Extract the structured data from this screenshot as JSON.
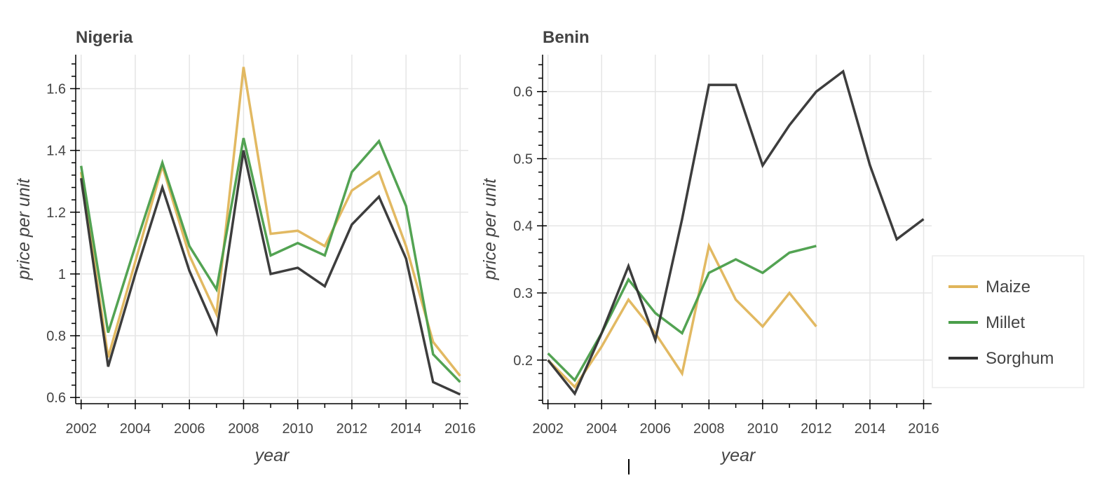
{
  "chart_data": [
    {
      "type": "line",
      "title": "Nigeria",
      "xlabel": "year",
      "ylabel": "price per unit",
      "xlim": [
        2001.8,
        2016.3
      ],
      "ylim": [
        0.58,
        1.71
      ],
      "x_ticks": [
        2002,
        2004,
        2006,
        2008,
        2010,
        2012,
        2014,
        2016
      ],
      "y_ticks": [
        0.6,
        0.8,
        1.0,
        1.2,
        1.4,
        1.6
      ],
      "y_tick_labels": [
        "0.6",
        "0.8",
        "1",
        "1.2",
        "1.4",
        "1.6"
      ],
      "grid": true,
      "series": [
        {
          "name": "Maize",
          "color": "#e0b55a",
          "x": [
            2002,
            2003,
            2004,
            2005,
            2006,
            2007,
            2008,
            2009,
            2010,
            2011,
            2012,
            2013,
            2014,
            2015,
            2016
          ],
          "values": [
            1.33,
            0.73,
            1.04,
            1.35,
            1.06,
            0.87,
            1.67,
            1.13,
            1.14,
            1.09,
            1.27,
            1.33,
            1.09,
            0.78,
            0.67
          ]
        },
        {
          "name": "Millet",
          "color": "#4a9e4a",
          "x": [
            2002,
            2003,
            2004,
            2005,
            2006,
            2007,
            2008,
            2009,
            2010,
            2011,
            2012,
            2013,
            2014,
            2015,
            2016
          ],
          "values": [
            1.35,
            0.81,
            1.09,
            1.36,
            1.09,
            0.95,
            1.44,
            1.06,
            1.1,
            1.06,
            1.33,
            1.43,
            1.22,
            0.74,
            0.65
          ]
        },
        {
          "name": "Sorghum",
          "color": "#333333",
          "x": [
            2002,
            2003,
            2004,
            2005,
            2006,
            2007,
            2008,
            2009,
            2010,
            2011,
            2012,
            2013,
            2014,
            2015,
            2016
          ],
          "values": [
            1.31,
            0.7,
            1.0,
            1.28,
            1.01,
            0.81,
            1.4,
            1.0,
            1.02,
            0.96,
            1.16,
            1.25,
            1.05,
            0.65,
            0.61
          ]
        }
      ]
    },
    {
      "type": "line",
      "title": "Benin",
      "xlabel": "year",
      "ylabel": "price per unit",
      "xlim": [
        2001.8,
        2016.3
      ],
      "ylim": [
        0.135,
        0.655
      ],
      "x_ticks": [
        2002,
        2004,
        2006,
        2008,
        2010,
        2012,
        2014,
        2016
      ],
      "y_ticks": [
        0.2,
        0.3,
        0.4,
        0.5,
        0.6
      ],
      "y_tick_labels": [
        "0.2",
        "0.3",
        "0.4",
        "0.5",
        "0.6"
      ],
      "grid": true,
      "legend_position": "right",
      "series": [
        {
          "name": "Maize",
          "color": "#e0b55a",
          "x": [
            2002,
            2003,
            2004,
            2005,
            2006,
            2007,
            2008,
            2009,
            2010,
            2011,
            2012
          ],
          "values": [
            0.2,
            0.16,
            0.22,
            0.29,
            0.24,
            0.18,
            0.37,
            0.29,
            0.25,
            0.3,
            0.25
          ]
        },
        {
          "name": "Millet",
          "color": "#4a9e4a",
          "x": [
            2002,
            2003,
            2004,
            2005,
            2006,
            2007,
            2008,
            2009,
            2010,
            2011,
            2012
          ],
          "values": [
            0.21,
            0.17,
            0.24,
            0.32,
            0.27,
            0.24,
            0.33,
            0.35,
            0.33,
            0.36,
            0.37
          ]
        },
        {
          "name": "Sorghum",
          "color": "#333333",
          "x": [
            2002,
            2003,
            2004,
            2005,
            2006,
            2007,
            2008,
            2009,
            2010,
            2011,
            2012,
            2013,
            2014,
            2015,
            2016
          ],
          "values": [
            0.2,
            0.15,
            0.24,
            0.34,
            0.23,
            0.41,
            0.61,
            0.61,
            0.49,
            0.55,
            0.6,
            0.63,
            0.49,
            0.38,
            0.41
          ]
        }
      ]
    }
  ],
  "legend": {
    "items": [
      {
        "label": "Maize",
        "color": "#e0b55a"
      },
      {
        "label": "Millet",
        "color": "#4a9e4a"
      },
      {
        "label": "Sorghum",
        "color": "#333333"
      }
    ]
  }
}
